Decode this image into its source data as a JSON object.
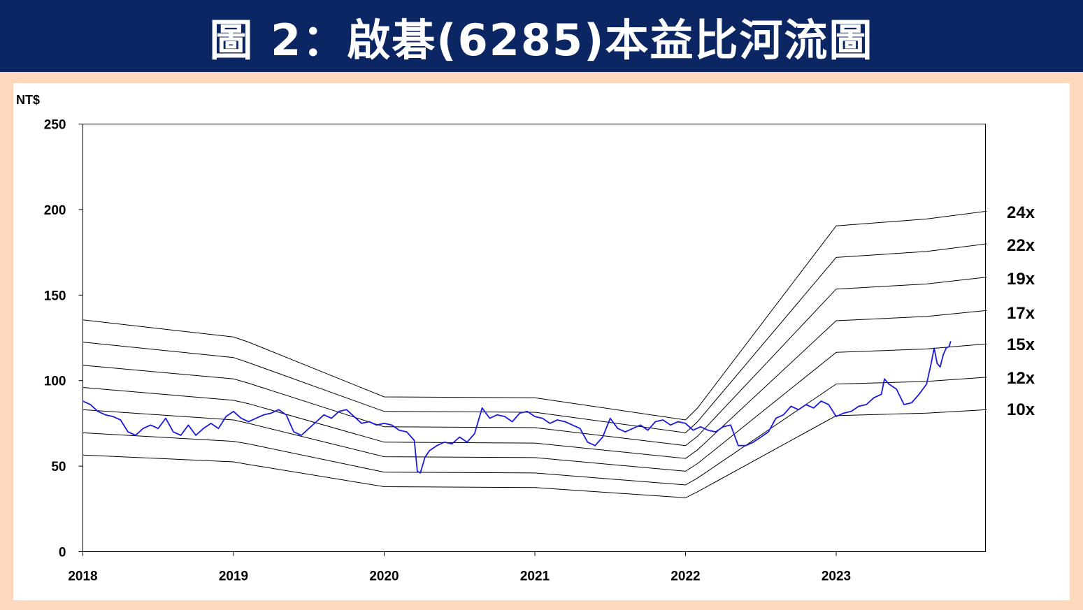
{
  "header": {
    "title": "圖 2：啟碁(6285)本益比河流圖"
  },
  "chart_data": {
    "type": "line",
    "title": "圖 2：啟碁(6285)本益比河流圖",
    "ylabel": "NT$",
    "xlabel": "",
    "ylim": [
      0,
      250
    ],
    "xlim": [
      2018.0,
      2024.0
    ],
    "y_ticks": [
      0,
      50,
      100,
      150,
      200,
      250
    ],
    "x_ticks": [
      2018,
      2019,
      2020,
      2021,
      2022,
      2023
    ],
    "grid": false,
    "colors": {
      "price": "#1a1adb",
      "bands": "#000000",
      "title_bg": "#0b2662",
      "frame_bg": "#fdd8bd"
    },
    "bands": [
      {
        "name": "24x",
        "points": [
          [
            2018.0,
            135.5
          ],
          [
            2019.0,
            125.5
          ],
          [
            2019.1,
            122.5
          ],
          [
            2020.0,
            90.5
          ],
          [
            2021.0,
            90.0
          ],
          [
            2022.0,
            77.0
          ],
          [
            2022.08,
            84.0
          ],
          [
            2023.0,
            190.5
          ],
          [
            2023.6,
            194.5
          ],
          [
            2024.0,
            199.0
          ]
        ]
      },
      {
        "name": "22x",
        "points": [
          [
            2018.0,
            122.5
          ],
          [
            2019.0,
            113.5
          ],
          [
            2019.1,
            110.5
          ],
          [
            2020.0,
            82.0
          ],
          [
            2021.0,
            81.5
          ],
          [
            2022.0,
            69.5
          ],
          [
            2022.08,
            76.0
          ],
          [
            2023.0,
            172.0
          ],
          [
            2023.6,
            175.5
          ],
          [
            2024.0,
            180.0
          ]
        ]
      },
      {
        "name": "19x",
        "points": [
          [
            2018.0,
            109.0
          ],
          [
            2019.0,
            101.0
          ],
          [
            2019.1,
            98.5
          ],
          [
            2020.0,
            73.0
          ],
          [
            2021.0,
            72.5
          ],
          [
            2022.0,
            62.0
          ],
          [
            2022.08,
            67.5
          ],
          [
            2023.0,
            153.5
          ],
          [
            2023.6,
            156.5
          ],
          [
            2024.0,
            160.5
          ]
        ]
      },
      {
        "name": "17x",
        "points": [
          [
            2018.0,
            96.0
          ],
          [
            2019.0,
            88.5
          ],
          [
            2019.1,
            86.5
          ],
          [
            2020.0,
            64.0
          ],
          [
            2021.0,
            63.5
          ],
          [
            2022.0,
            54.5
          ],
          [
            2022.08,
            59.5
          ],
          [
            2023.0,
            135.0
          ],
          [
            2023.6,
            137.5
          ],
          [
            2024.0,
            141.0
          ]
        ]
      },
      {
        "name": "15x",
        "points": [
          [
            2018.0,
            83.0
          ],
          [
            2019.0,
            77.0
          ],
          [
            2019.1,
            75.0
          ],
          [
            2020.0,
            55.5
          ],
          [
            2021.0,
            55.0
          ],
          [
            2022.0,
            47.0
          ],
          [
            2022.08,
            51.5
          ],
          [
            2023.0,
            116.5
          ],
          [
            2023.6,
            118.5
          ],
          [
            2024.0,
            121.5
          ]
        ]
      },
      {
        "name": "12x",
        "points": [
          [
            2018.0,
            69.5
          ],
          [
            2019.0,
            64.5
          ],
          [
            2019.1,
            63.0
          ],
          [
            2020.0,
            46.5
          ],
          [
            2021.0,
            46.0
          ],
          [
            2022.0,
            39.0
          ],
          [
            2022.08,
            43.0
          ],
          [
            2023.0,
            98.0
          ],
          [
            2023.6,
            99.5
          ],
          [
            2024.0,
            102.0
          ]
        ]
      },
      {
        "name": "10x",
        "points": [
          [
            2018.0,
            56.5
          ],
          [
            2019.0,
            52.5
          ],
          [
            2019.1,
            51.0
          ],
          [
            2020.0,
            38.0
          ],
          [
            2021.0,
            37.5
          ],
          [
            2022.0,
            31.5
          ],
          [
            2022.08,
            35.0
          ],
          [
            2023.0,
            79.5
          ],
          [
            2023.6,
            81.0
          ],
          [
            2024.0,
            83.0
          ]
        ]
      }
    ],
    "series": [
      {
        "values": [
          [
            2018.0,
            88
          ],
          [
            2018.05,
            86
          ],
          [
            2018.1,
            82
          ],
          [
            2018.15,
            80
          ],
          [
            2018.2,
            79
          ],
          [
            2018.25,
            77
          ],
          [
            2018.3,
            70
          ],
          [
            2018.35,
            68
          ],
          [
            2018.4,
            72
          ],
          [
            2018.45,
            74
          ],
          [
            2018.5,
            72
          ],
          [
            2018.55,
            78
          ],
          [
            2018.6,
            70
          ],
          [
            2018.65,
            68
          ],
          [
            2018.7,
            74
          ],
          [
            2018.75,
            68
          ],
          [
            2018.8,
            72
          ],
          [
            2018.85,
            75
          ],
          [
            2018.9,
            72
          ],
          [
            2018.95,
            79
          ],
          [
            2019.0,
            82
          ],
          [
            2019.05,
            78
          ],
          [
            2019.1,
            76
          ],
          [
            2019.15,
            78
          ],
          [
            2019.2,
            80
          ],
          [
            2019.25,
            81
          ],
          [
            2019.3,
            83
          ],
          [
            2019.35,
            80
          ],
          [
            2019.4,
            70
          ],
          [
            2019.45,
            68
          ],
          [
            2019.5,
            72
          ],
          [
            2019.55,
            76
          ],
          [
            2019.6,
            80
          ],
          [
            2019.65,
            78
          ],
          [
            2019.7,
            82
          ],
          [
            2019.75,
            83
          ],
          [
            2019.8,
            79
          ],
          [
            2019.85,
            75
          ],
          [
            2019.9,
            76
          ],
          [
            2019.95,
            74
          ],
          [
            2020.0,
            75
          ],
          [
            2020.05,
            74
          ],
          [
            2020.1,
            71
          ],
          [
            2020.15,
            70
          ],
          [
            2020.2,
            65
          ],
          [
            2020.22,
            47
          ],
          [
            2020.24,
            46
          ],
          [
            2020.27,
            55
          ],
          [
            2020.3,
            59
          ],
          [
            2020.35,
            62
          ],
          [
            2020.4,
            64
          ],
          [
            2020.45,
            63
          ],
          [
            2020.5,
            67
          ],
          [
            2020.55,
            64
          ],
          [
            2020.6,
            69
          ],
          [
            2020.65,
            84
          ],
          [
            2020.7,
            78
          ],
          [
            2020.75,
            80
          ],
          [
            2020.8,
            79
          ],
          [
            2020.85,
            76
          ],
          [
            2020.9,
            81
          ],
          [
            2020.95,
            82
          ],
          [
            2021.0,
            79
          ],
          [
            2021.05,
            78
          ],
          [
            2021.1,
            75
          ],
          [
            2021.15,
            77
          ],
          [
            2021.2,
            76
          ],
          [
            2021.25,
            74
          ],
          [
            2021.3,
            72
          ],
          [
            2021.35,
            64
          ],
          [
            2021.4,
            62
          ],
          [
            2021.45,
            67
          ],
          [
            2021.5,
            78
          ],
          [
            2021.55,
            72
          ],
          [
            2021.6,
            70
          ],
          [
            2021.65,
            72
          ],
          [
            2021.7,
            74
          ],
          [
            2021.75,
            71
          ],
          [
            2021.8,
            76
          ],
          [
            2021.85,
            77
          ],
          [
            2021.9,
            74
          ],
          [
            2021.95,
            76
          ],
          [
            2022.0,
            75
          ],
          [
            2022.05,
            71
          ],
          [
            2022.1,
            73
          ],
          [
            2022.15,
            71
          ],
          [
            2022.2,
            70
          ],
          [
            2022.25,
            73
          ],
          [
            2022.3,
            74
          ],
          [
            2022.35,
            62
          ],
          [
            2022.4,
            62
          ],
          [
            2022.45,
            64
          ],
          [
            2022.5,
            67
          ],
          [
            2022.55,
            70
          ],
          [
            2022.6,
            78
          ],
          [
            2022.65,
            80
          ],
          [
            2022.7,
            85
          ],
          [
            2022.75,
            83
          ],
          [
            2022.8,
            86
          ],
          [
            2022.85,
            84
          ],
          [
            2022.9,
            88
          ],
          [
            2022.95,
            86
          ],
          [
            2023.0,
            79
          ],
          [
            2023.05,
            81
          ],
          [
            2023.1,
            82
          ],
          [
            2023.15,
            85
          ],
          [
            2023.2,
            86
          ],
          [
            2023.25,
            90
          ],
          [
            2023.3,
            92
          ],
          [
            2023.32,
            101
          ],
          [
            2023.35,
            98
          ],
          [
            2023.4,
            95
          ],
          [
            2023.45,
            86
          ],
          [
            2023.5,
            87
          ],
          [
            2023.55,
            92
          ],
          [
            2023.6,
            98
          ],
          [
            2023.63,
            110
          ],
          [
            2023.65,
            119
          ],
          [
            2023.67,
            110
          ],
          [
            2023.69,
            108
          ],
          [
            2023.71,
            115
          ],
          [
            2023.73,
            119
          ],
          [
            2023.75,
            120
          ],
          [
            2023.76,
            123
          ]
        ]
      }
    ]
  }
}
